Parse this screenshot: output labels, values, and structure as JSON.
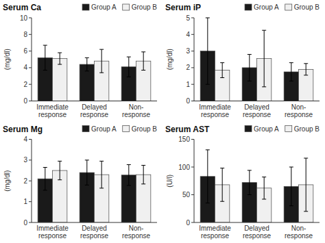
{
  "chart_data": [
    {
      "type": "bar",
      "title": "Serum Ca",
      "ylabel": "(mg/dl)",
      "categories": [
        "Immediate\nresponse",
        "Delayed\nresponse",
        "Non-\nresponse"
      ],
      "series": [
        {
          "name": "Group A",
          "color": "#1a1a1a",
          "values": [
            5.2,
            4.4,
            4.1
          ],
          "errors": [
            1.5,
            0.8,
            1.2
          ]
        },
        {
          "name": "Group B",
          "color": "#f0f0f0",
          "values": [
            5.1,
            4.8,
            4.8
          ],
          "errors": [
            0.7,
            1.4,
            1.1
          ]
        }
      ],
      "ylim": [
        0,
        10
      ],
      "yticks": [
        0,
        2,
        4,
        6,
        8,
        10
      ],
      "grid": false,
      "legend": "top"
    },
    {
      "type": "bar",
      "title": "Serum iP",
      "ylabel": "(mg/dl)",
      "categories": [
        "Immediate\nresponse",
        "Delayed\nresponse",
        "Non-\nresponse"
      ],
      "series": [
        {
          "name": "Group A",
          "color": "#1a1a1a",
          "values": [
            3.0,
            2.0,
            1.75
          ],
          "errors": [
            2.0,
            0.8,
            0.55
          ]
        },
        {
          "name": "Group B",
          "color": "#f0f0f0",
          "values": [
            1.85,
            2.55,
            1.9
          ],
          "errors": [
            0.45,
            1.7,
            0.35
          ]
        }
      ],
      "ylim": [
        0,
        5
      ],
      "yticks": [
        0,
        1,
        2,
        3,
        4,
        5
      ],
      "grid": false,
      "legend": "top"
    },
    {
      "type": "bar",
      "title": "Serum Mg",
      "ylabel": "(mg/dl)",
      "categories": [
        "Immediate\nresponse",
        "Delayed\nresponse",
        "Non-\nresponse"
      ],
      "series": [
        {
          "name": "Group A",
          "color": "#1a1a1a",
          "values": [
            2.1,
            2.4,
            2.28
          ],
          "errors": [
            0.55,
            0.6,
            0.5
          ]
        },
        {
          "name": "Group B",
          "color": "#f0f0f0",
          "values": [
            2.5,
            2.3,
            2.3
          ],
          "errors": [
            0.45,
            0.65,
            0.45
          ]
        }
      ],
      "ylim": [
        0,
        4
      ],
      "yticks": [
        0,
        1,
        2,
        3,
        4
      ],
      "grid": false,
      "legend": "top"
    },
    {
      "type": "bar",
      "title": "Serum AST",
      "ylabel": "(U/l)",
      "categories": [
        "Immediate\nresponse",
        "Delayed\nresponse",
        "Non-\nresponse"
      ],
      "series": [
        {
          "name": "Group A",
          "color": "#1a1a1a",
          "values": [
            83,
            72,
            65
          ],
          "errors": [
            48,
            22,
            35
          ]
        },
        {
          "name": "Group B",
          "color": "#f0f0f0",
          "values": [
            68,
            62,
            68
          ],
          "errors": [
            30,
            20,
            48
          ]
        }
      ],
      "ylim": [
        0,
        150
      ],
      "yticks": [
        0,
        50,
        100,
        150
      ],
      "grid": false,
      "legend": "top"
    }
  ]
}
